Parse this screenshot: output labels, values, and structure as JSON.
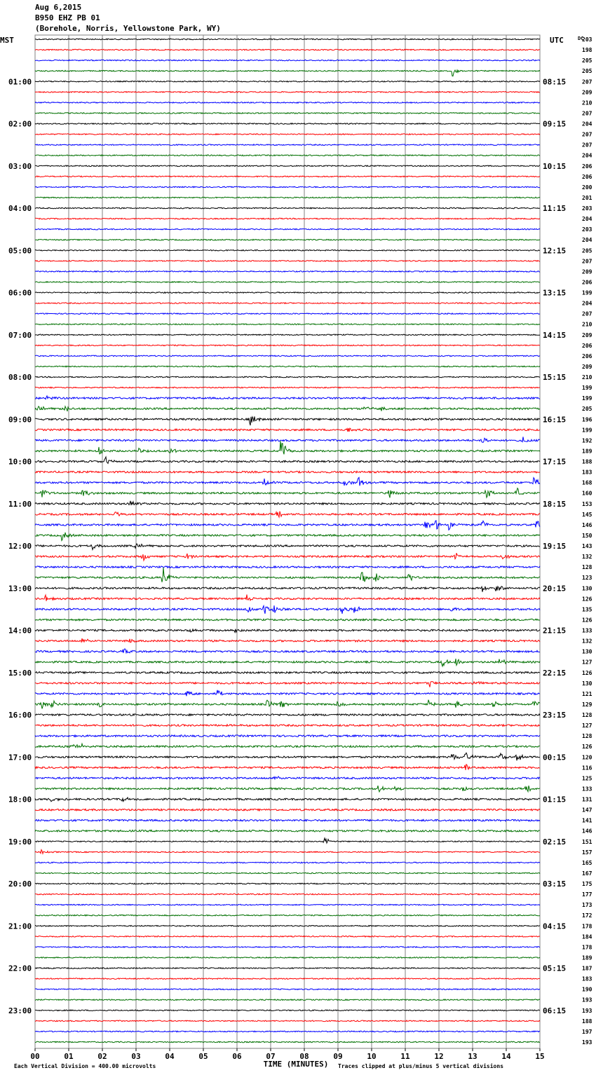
{
  "header": {
    "date": "Aug 6,2015",
    "station": "B950 EHZ PB 01",
    "location": "(Borehole, Norris, Yellowstone Park, WY)"
  },
  "left_tz_label": "MST",
  "right_tz_label": "UTC",
  "dc_label": "DC",
  "x_axis_label": "TIME (MINUTES)",
  "footer": {
    "left": "Each Vertical Division =  400.00 microvolts",
    "right": "Traces clipped at plus/minus 5 vertical divisions"
  },
  "colors": {
    "trace_cycle": [
      "#000000",
      "#ff0000",
      "#0000ff",
      "#007000"
    ],
    "grid": "#808080"
  },
  "chart_data": {
    "type": "line",
    "title": "",
    "xlabel": "TIME (MINUTES)",
    "ylabel": "",
    "xlim": [
      0,
      15
    ],
    "x_ticks": [
      "00",
      "01",
      "02",
      "03",
      "04",
      "05",
      "06",
      "07",
      "08",
      "09",
      "10",
      "11",
      "12",
      "13",
      "14",
      "15"
    ],
    "row_count": 96,
    "row_duration_minutes": 15,
    "left_hour_labels": [
      "01:00",
      "02:00",
      "03:00",
      "04:00",
      "05:00",
      "06:00",
      "07:00",
      "08:00",
      "09:00",
      "10:00",
      "11:00",
      "12:00",
      "13:00",
      "14:00",
      "15:00",
      "16:00",
      "17:00",
      "18:00",
      "19:00",
      "20:00",
      "21:00",
      "22:00",
      "23:00"
    ],
    "right_hour_labels": [
      "08:15",
      "09:15",
      "10:15",
      "11:15",
      "12:15",
      "13:15",
      "14:15",
      "15:15",
      "16:15",
      "17:15",
      "18:15",
      "19:15",
      "20:15",
      "21:15",
      "22:15",
      "23:15",
      "00:15",
      "01:15",
      "02:15",
      "03:15",
      "04:15",
      "05:15",
      "06:15"
    ],
    "dc_offsets": [
      203,
      198,
      205,
      205,
      207,
      209,
      210,
      207,
      204,
      207,
      207,
      204,
      206,
      206,
      200,
      201,
      203,
      204,
      203,
      204,
      205,
      207,
      209,
      206,
      199,
      204,
      207,
      210,
      209,
      206,
      206,
      209,
      210,
      199,
      199,
      205,
      196,
      199,
      192,
      189,
      188,
      183,
      168,
      160,
      153,
      145,
      146,
      150,
      143,
      132,
      128,
      123,
      130,
      126,
      135,
      126,
      133,
      132,
      130,
      127,
      126,
      130,
      121,
      129,
      128,
      127,
      128,
      126,
      120,
      116,
      125,
      133,
      131,
      147,
      141,
      146,
      151,
      157,
      165,
      167,
      175,
      177,
      173,
      172,
      178,
      184,
      178,
      189,
      187,
      183,
      190,
      193,
      193,
      188,
      197,
      193
    ],
    "events": [
      {
        "row": 3,
        "minute": 12.4,
        "amp": 9
      },
      {
        "row": 34,
        "minute": 0.3,
        "amp": 6
      },
      {
        "row": 35,
        "minute": 0.1,
        "amp": 8
      },
      {
        "row": 35,
        "minute": 0.9,
        "amp": 6
      },
      {
        "row": 35,
        "minute": 9.8,
        "amp": 5
      },
      {
        "row": 35,
        "minute": 10.3,
        "amp": 5
      },
      {
        "row": 36,
        "minute": 6.4,
        "amp": 10
      },
      {
        "row": 37,
        "minute": 9.3,
        "amp": 4
      },
      {
        "row": 38,
        "minute": 13.3,
        "amp": 6
      },
      {
        "row": 38,
        "minute": 14.5,
        "amp": 6
      },
      {
        "row": 39,
        "minute": 1.9,
        "amp": 9
      },
      {
        "row": 39,
        "minute": 3.1,
        "amp": 6
      },
      {
        "row": 39,
        "minute": 4.0,
        "amp": 5
      },
      {
        "row": 39,
        "minute": 7.3,
        "amp": 20
      },
      {
        "row": 40,
        "minute": 2.1,
        "amp": 7
      },
      {
        "row": 42,
        "minute": 6.8,
        "amp": 8
      },
      {
        "row": 42,
        "minute": 9.2,
        "amp": 6
      },
      {
        "row": 42,
        "minute": 9.6,
        "amp": 10
      },
      {
        "row": 42,
        "minute": 14.8,
        "amp": 9
      },
      {
        "row": 43,
        "minute": 0.2,
        "amp": 9
      },
      {
        "row": 43,
        "minute": 1.4,
        "amp": 8
      },
      {
        "row": 43,
        "minute": 10.5,
        "amp": 9
      },
      {
        "row": 43,
        "minute": 13.4,
        "amp": 10
      },
      {
        "row": 43,
        "minute": 14.3,
        "amp": 9
      },
      {
        "row": 44,
        "minute": 2.8,
        "amp": 8
      },
      {
        "row": 45,
        "minute": 2.4,
        "amp": 6
      },
      {
        "row": 45,
        "minute": 7.2,
        "amp": 6
      },
      {
        "row": 46,
        "minute": 11.6,
        "amp": 8
      },
      {
        "row": 46,
        "minute": 11.9,
        "amp": 8
      },
      {
        "row": 46,
        "minute": 12.3,
        "amp": 9
      },
      {
        "row": 46,
        "minute": 13.3,
        "amp": 7
      },
      {
        "row": 46,
        "minute": 14.9,
        "amp": 9
      },
      {
        "row": 47,
        "minute": 0.8,
        "amp": 8
      },
      {
        "row": 48,
        "minute": 1.7,
        "amp": 7
      },
      {
        "row": 48,
        "minute": 3.0,
        "amp": 8
      },
      {
        "row": 49,
        "minute": 3.2,
        "amp": 7
      },
      {
        "row": 49,
        "minute": 4.5,
        "amp": 7
      },
      {
        "row": 49,
        "minute": 12.5,
        "amp": 6
      },
      {
        "row": 49,
        "minute": 13.9,
        "amp": 7
      },
      {
        "row": 51,
        "minute": 3.8,
        "amp": 16
      },
      {
        "row": 51,
        "minute": 9.7,
        "amp": 11
      },
      {
        "row": 51,
        "minute": 10.1,
        "amp": 8
      },
      {
        "row": 51,
        "minute": 11.1,
        "amp": 7
      },
      {
        "row": 52,
        "minute": 13.3,
        "amp": 7
      },
      {
        "row": 52,
        "minute": 13.7,
        "amp": 8
      },
      {
        "row": 53,
        "minute": 0.3,
        "amp": 6
      },
      {
        "row": 53,
        "minute": 6.3,
        "amp": 6
      },
      {
        "row": 54,
        "minute": 6.3,
        "amp": 8
      },
      {
        "row": 54,
        "minute": 6.8,
        "amp": 8
      },
      {
        "row": 54,
        "minute": 7.1,
        "amp": 6
      },
      {
        "row": 54,
        "minute": 9.1,
        "amp": 8
      },
      {
        "row": 54,
        "minute": 9.5,
        "amp": 8
      },
      {
        "row": 54,
        "minute": 12.3,
        "amp": 6
      },
      {
        "row": 56,
        "minute": 4.6,
        "amp": 4
      },
      {
        "row": 56,
        "minute": 5.9,
        "amp": 4
      },
      {
        "row": 57,
        "minute": 1.4,
        "amp": 5
      },
      {
        "row": 57,
        "minute": 2.8,
        "amp": 4
      },
      {
        "row": 58,
        "minute": 2.6,
        "amp": 6
      },
      {
        "row": 59,
        "minute": 12.1,
        "amp": 7
      },
      {
        "row": 59,
        "minute": 12.5,
        "amp": 6
      },
      {
        "row": 59,
        "minute": 13.8,
        "amp": 6
      },
      {
        "row": 61,
        "minute": 11.7,
        "amp": 7
      },
      {
        "row": 61,
        "minute": 13.0,
        "amp": 5
      },
      {
        "row": 62,
        "minute": 4.5,
        "amp": 6
      },
      {
        "row": 62,
        "minute": 5.4,
        "amp": 6
      },
      {
        "row": 63,
        "minute": 0.2,
        "amp": 8
      },
      {
        "row": 63,
        "minute": 0.5,
        "amp": 9
      },
      {
        "row": 63,
        "minute": 1.9,
        "amp": 7
      },
      {
        "row": 63,
        "minute": 6.9,
        "amp": 7
      },
      {
        "row": 63,
        "minute": 7.3,
        "amp": 6
      },
      {
        "row": 63,
        "minute": 9.0,
        "amp": 5
      },
      {
        "row": 63,
        "minute": 11.7,
        "amp": 7
      },
      {
        "row": 63,
        "minute": 12.5,
        "amp": 6
      },
      {
        "row": 63,
        "minute": 13.6,
        "amp": 6
      },
      {
        "row": 63,
        "minute": 14.8,
        "amp": 7
      },
      {
        "row": 67,
        "minute": 1.1,
        "amp": 5
      },
      {
        "row": 67,
        "minute": 1.4,
        "amp": 5
      },
      {
        "row": 68,
        "minute": 12.4,
        "amp": 8
      },
      {
        "row": 68,
        "minute": 12.8,
        "amp": 9
      },
      {
        "row": 68,
        "minute": 13.8,
        "amp": 8
      },
      {
        "row": 68,
        "minute": 14.3,
        "amp": 8
      },
      {
        "row": 69,
        "minute": 12.8,
        "amp": 6
      },
      {
        "row": 70,
        "minute": 7.1,
        "amp": 4
      },
      {
        "row": 71,
        "minute": 10.2,
        "amp": 6
      },
      {
        "row": 71,
        "minute": 10.7,
        "amp": 4
      },
      {
        "row": 71,
        "minute": 12.7,
        "amp": 5
      },
      {
        "row": 71,
        "minute": 14.6,
        "amp": 6
      },
      {
        "row": 72,
        "minute": 0.5,
        "amp": 6
      },
      {
        "row": 72,
        "minute": 2.6,
        "amp": 5
      },
      {
        "row": 76,
        "minute": 8.6,
        "amp": 6
      },
      {
        "row": 77,
        "minute": 0.2,
        "amp": 5
      }
    ]
  }
}
